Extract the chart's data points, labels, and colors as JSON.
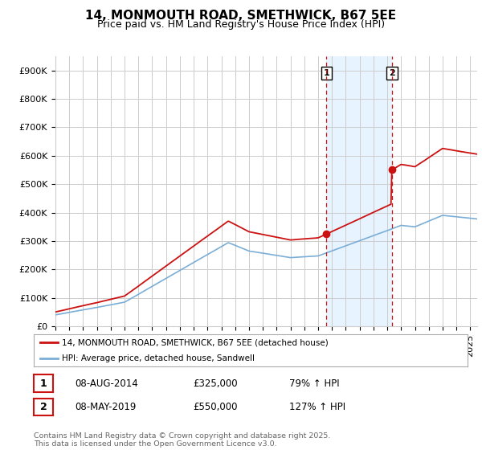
{
  "title": "14, MONMOUTH ROAD, SMETHWICK, B67 5EE",
  "subtitle": "Price paid vs. HM Land Registry's House Price Index (HPI)",
  "background_color": "#ffffff",
  "plot_bg_color": "#ffffff",
  "grid_color": "#cccccc",
  "ylim": [
    0,
    950000
  ],
  "yticks": [
    0,
    100000,
    200000,
    300000,
    400000,
    500000,
    600000,
    700000,
    800000,
    900000
  ],
  "ytick_labels": [
    "£0",
    "£100K",
    "£200K",
    "£300K",
    "£400K",
    "£500K",
    "£600K",
    "£700K",
    "£800K",
    "£900K"
  ],
  "sale1_date_num": 2014.6,
  "sale1_price": 325000,
  "sale1_label": "1",
  "sale1_date_str": "08-AUG-2014",
  "sale1_pct": "79%",
  "sale2_date_num": 2019.35,
  "sale2_price": 550000,
  "sale2_label": "2",
  "sale2_date_str": "08-MAY-2019",
  "sale2_pct": "127%",
  "hpi_line_color": "#7aaed6",
  "price_line_color": "#cc1111",
  "shaded_region_color": "#ddeeff",
  "dashed_line_color": "#cc1111",
  "legend_label_red": "14, MONMOUTH ROAD, SMETHWICK, B67 5EE (detached house)",
  "legend_label_blue": "HPI: Average price, detached house, Sandwell",
  "footer": "Contains HM Land Registry data © Crown copyright and database right 2025.\nThis data is licensed under the Open Government Licence v3.0.",
  "title_fontsize": 11,
  "subtitle_fontsize": 9,
  "tick_fontsize": 8,
  "xlim_left": 1995,
  "xlim_right": 2025.5
}
